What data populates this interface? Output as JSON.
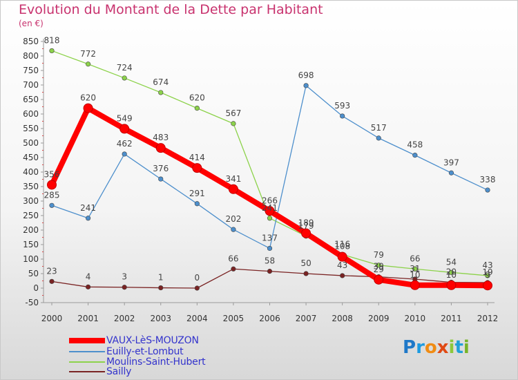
{
  "title": "Evolution du Montant de la Dette par Habitant",
  "subtitle": "(en €)",
  "logo": {
    "letters": [
      "P",
      "r",
      "o",
      "x",
      "i",
      "t",
      "i"
    ],
    "colors": [
      "#1e78c8",
      "#1e9be0",
      "#f08c14",
      "#e04a14",
      "#8cc83c",
      "#20a0d8",
      "#78b428"
    ]
  },
  "chart_data": {
    "type": "line",
    "title": "Evolution du Montant de la Dette par Habitant",
    "ylabel": "(en €)",
    "x": [
      2000,
      2001,
      2002,
      2003,
      2004,
      2005,
      2006,
      2007,
      2008,
      2009,
      2010,
      2011,
      2012
    ],
    "ylim": [
      -50,
      850
    ],
    "yticks": [
      -50,
      0,
      50,
      100,
      150,
      200,
      250,
      300,
      350,
      400,
      450,
      500,
      550,
      600,
      650,
      700,
      750,
      800,
      850
    ],
    "grid": false,
    "legend_position": "bottom-left",
    "series": [
      {
        "name": "VAUX-LèS-MOUZON",
        "color": "#ff0000",
        "values": [
          356,
          620,
          549,
          483,
          414,
          341,
          266,
          189,
          108,
          29,
          10,
          10,
          9
        ]
      },
      {
        "name": "Euilly-et-Lombut",
        "color": "#4d8fcc",
        "values": [
          285,
          241,
          462,
          376,
          291,
          202,
          137,
          698,
          593,
          517,
          458,
          397,
          338
        ]
      },
      {
        "name": "Moulins-Saint-Hubert",
        "color": "#8cd24a",
        "values": [
          818,
          772,
          724,
          674,
          620,
          567,
          241,
          179,
          116,
          79,
          66,
          54,
          43
        ]
      },
      {
        "name": "Sailly",
        "color": "#7a2323",
        "values": [
          23,
          4,
          3,
          1,
          0,
          66,
          58,
          50,
          43,
          39,
          31,
          20,
          19
        ]
      }
    ]
  }
}
